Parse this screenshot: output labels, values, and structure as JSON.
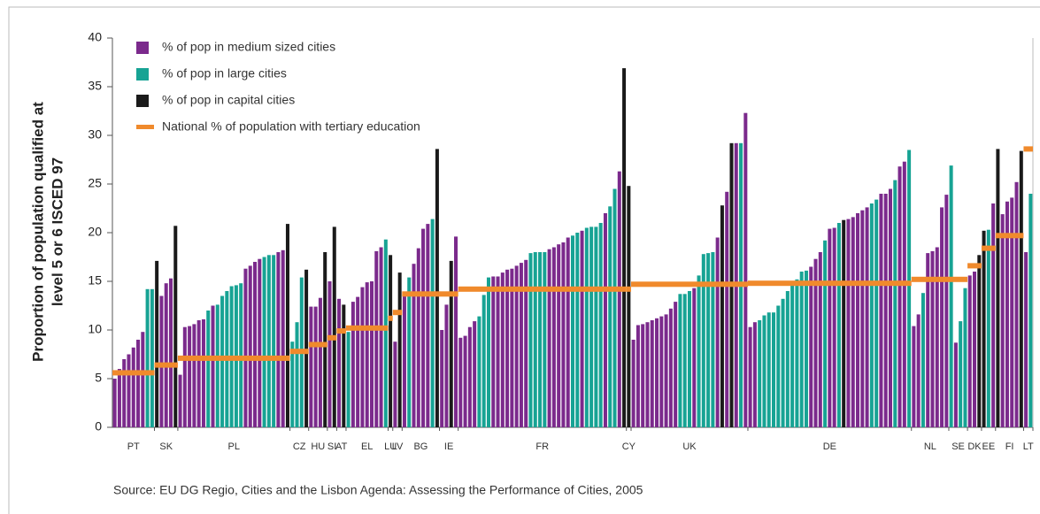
{
  "chart_data": {
    "type": "bar",
    "ylabel": [
      "Proportion of population qualified at",
      "level 5 or 6 ISCED 97"
    ],
    "source": "Source: EU DG Regio, Cities and the Lisbon Agenda: Assessing the Performance of Cities, 2005",
    "ylim": [
      0,
      40
    ],
    "yticks": [
      0,
      5,
      10,
      15,
      20,
      25,
      30,
      35,
      40
    ],
    "series": [
      {
        "name": "% of pop in medium sized cities",
        "color": "#7b2a8c"
      },
      {
        "name": "% of pop in large cities",
        "color": "#17a394"
      },
      {
        "name": "% of pop in capital cities",
        "color": "#1a1a1a"
      },
      {
        "name": "National % of population with tertiary education",
        "color": "#f08a2c"
      }
    ],
    "groups": [
      {
        "label": "PT",
        "national": 5.6,
        "values": [
          5,
          6,
          7,
          7.5,
          8.2,
          9,
          9.8,
          14.2,
          14.2
        ],
        "kinds": [
          0,
          0,
          0,
          0,
          0,
          0,
          0,
          1,
          1
        ]
      },
      {
        "label": "SK",
        "national": 6.4,
        "values": [
          17.1,
          13.5,
          14.8,
          15.3,
          20.7
        ],
        "kinds": [
          2,
          0,
          0,
          0,
          2
        ]
      },
      {
        "label": "PL",
        "national": 7.1,
        "values": [
          5.4,
          10.3,
          10.4,
          10.6,
          11,
          11.1,
          12,
          12.5,
          12.6,
          13.5,
          14,
          14.5,
          14.6,
          14.8,
          16.3,
          16.6,
          17,
          17.3,
          17.5,
          17.7,
          17.7,
          18,
          18.2,
          20.9
        ],
        "kinds": [
          0,
          0,
          0,
          0,
          0,
          0,
          1,
          0,
          1,
          1,
          1,
          1,
          1,
          1,
          0,
          0,
          0,
          0,
          1,
          1,
          1,
          0,
          0,
          2
        ]
      },
      {
        "label": "CZ",
        "national": 7.8,
        "values": [
          8.8,
          10.8,
          15.4,
          16.2
        ],
        "kinds": [
          1,
          1,
          1,
          2
        ]
      },
      {
        "label": "HU",
        "national": 8.5,
        "values": [
          12.4,
          12.4,
          13.3,
          18
        ],
        "kinds": [
          0,
          0,
          0,
          2
        ]
      },
      {
        "label": "SI",
        "national": 9.2,
        "values": [
          15,
          20.6
        ],
        "kinds": [
          0,
          2
        ]
      },
      {
        "label": "AT",
        "national": 9.9,
        "values": [
          13.2,
          12.6
        ],
        "kinds": [
          0,
          2
        ]
      },
      {
        "label": "EL",
        "national": 10.2,
        "values": [
          9.8,
          12.9,
          13.4,
          14.4,
          14.9,
          15,
          18.1,
          18.5,
          19.3
        ],
        "kinds": [
          1,
          0,
          0,
          0,
          0,
          0,
          0,
          0,
          1
        ]
      },
      {
        "label": "LU",
        "national": 11.2,
        "values": [
          17.7
        ],
        "kinds": [
          2
        ]
      },
      {
        "label": "LV",
        "national": 11.8,
        "values": [
          8.8,
          15.9
        ],
        "kinds": [
          0,
          2
        ]
      },
      {
        "label": "BG",
        "national": 13.7,
        "values": [
          13.9,
          15.4,
          16.8,
          18.4,
          20.4,
          20.9,
          21.4,
          28.6
        ],
        "kinds": [
          0,
          1,
          0,
          0,
          0,
          0,
          1,
          2
        ]
      },
      {
        "label": "IE",
        "national": 13.7,
        "values": [
          10,
          12.6,
          17.1,
          19.6
        ],
        "kinds": [
          0,
          0,
          2,
          0
        ]
      },
      {
        "label": "FR",
        "national": 14.2,
        "values": [
          9.2,
          9.4,
          10.3,
          10.9,
          11.4,
          13.6,
          15.4,
          15.5,
          15.5,
          15.9,
          16.2,
          16.3,
          16.6,
          16.9,
          17.2,
          17.9,
          18,
          18,
          18,
          18.3,
          18.5,
          18.8,
          19,
          19.5,
          19.7,
          20,
          20.2,
          20.5,
          20.6,
          20.6,
          21,
          22,
          22.7,
          24.5,
          26.3,
          36.9
        ],
        "kinds": [
          0,
          0,
          0,
          0,
          1,
          1,
          1,
          0,
          0,
          0,
          0,
          0,
          0,
          0,
          0,
          1,
          1,
          1,
          1,
          0,
          0,
          0,
          0,
          0,
          1,
          1,
          0,
          1,
          1,
          1,
          1,
          0,
          1,
          1,
          0,
          2
        ]
      },
      {
        "label": "CY",
        "national": 14.2,
        "values": [
          24.8
        ],
        "kinds": [
          2
        ]
      },
      {
        "label": "UK",
        "national": 14.7,
        "values": [
          9,
          10.5,
          10.6,
          10.8,
          11,
          11.2,
          11.4,
          11.6,
          12.2,
          12.9,
          13.7,
          13.7,
          14,
          14.3,
          15.6,
          17.8,
          17.9,
          18,
          19.5,
          22.8,
          24.2,
          29.2,
          29.2,
          29.2,
          32.3
        ],
        "kinds": [
          0,
          0,
          0,
          0,
          0,
          0,
          0,
          0,
          0,
          0,
          1,
          1,
          1,
          0,
          1,
          1,
          1,
          1,
          0,
          2,
          0,
          2,
          0,
          1,
          0
        ]
      },
      {
        "label": "DE",
        "national": 14.8,
        "values": [
          10.3,
          10.8,
          11,
          11.5,
          11.8,
          11.8,
          12.5,
          13.2,
          14,
          15,
          15.2,
          16,
          16.1,
          16.5,
          17.3,
          18,
          19.2,
          20.4,
          20.5,
          21,
          21.3,
          21.4,
          21.6,
          22,
          22.3,
          22.6,
          23,
          23.4,
          24,
          24,
          24.5,
          25.4,
          26.8,
          27.3,
          28.5
        ],
        "kinds": [
          0,
          0,
          1,
          1,
          1,
          1,
          1,
          1,
          1,
          1,
          1,
          1,
          1,
          0,
          0,
          0,
          1,
          0,
          0,
          1,
          2,
          0,
          0,
          0,
          0,
          0,
          1,
          1,
          0,
          0,
          0,
          1,
          0,
          0,
          1
        ]
      },
      {
        "label": "NL",
        "national": 15.2,
        "values": [
          10.4,
          11.6,
          13.8,
          17.9,
          18.1,
          18.5,
          22.6,
          23.9
        ],
        "kinds": [
          0,
          0,
          1,
          0,
          0,
          0,
          0,
          0
        ]
      },
      {
        "label": "SE",
        "national": 15.2,
        "values": [
          26.9,
          8.7,
          10.9,
          14.3
        ],
        "kinds": [
          1,
          0,
          1,
          1
        ]
      },
      {
        "label": "DK",
        "national": 16.6,
        "values": [
          15.6,
          16,
          17.7
        ],
        "kinds": [
          0,
          0,
          2
        ]
      },
      {
        "label": "EE",
        "national": 18.4,
        "values": [
          20.2,
          20.3,
          23
        ],
        "kinds": [
          2,
          1,
          0
        ]
      },
      {
        "label": "FI",
        "national": 19.7,
        "values": [
          28.6,
          21.9,
          23.2,
          23.6,
          25.2,
          28.4
        ],
        "kinds": [
          2,
          0,
          0,
          0,
          0,
          2
        ]
      },
      {
        "label": "LT",
        "national": 28.6,
        "values": [
          18,
          24
        ],
        "kinds": [
          0,
          1
        ]
      }
    ]
  }
}
